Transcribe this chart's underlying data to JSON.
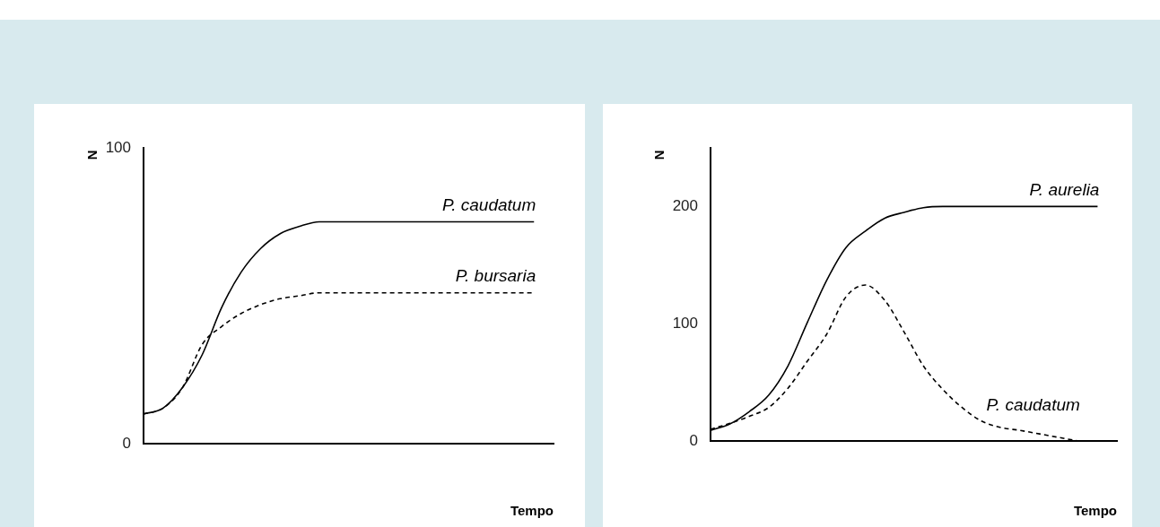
{
  "chart_data": [
    {
      "type": "line",
      "ylabel": "N",
      "xlabel": "Tempo",
      "categories": [
        null,
        null,
        null,
        null,
        null,
        null,
        null,
        null,
        null,
        null,
        null,
        null,
        null,
        null,
        null,
        null,
        null,
        null,
        null,
        null,
        null,
        null
      ],
      "series": [
        {
          "name": "P. caudatum",
          "color": "#000000",
          "line_style": "solid",
          "values": [
            10,
            12,
            19,
            30,
            46,
            58,
            66,
            71,
            73.5,
            75,
            75,
            75,
            75,
            75,
            75,
            75,
            75,
            75,
            75,
            75,
            75,
            null
          ]
        },
        {
          "name": "P. bursaria",
          "color": "#000000",
          "line_style": "dashed",
          "values": [
            10,
            12,
            19,
            33.5,
            39.6,
            44,
            47,
            49,
            50,
            51,
            51,
            51,
            51,
            51,
            51,
            51,
            51,
            51,
            51,
            51,
            51,
            null
          ]
        }
      ],
      "ylim": [
        0,
        100
      ],
      "yticks": [
        0,
        100
      ],
      "tick_labels": "y",
      "grid": false,
      "legend": false
    },
    {
      "type": "line",
      "ylabel": "N",
      "xlabel": "Tempo",
      "categories": [
        null,
        null,
        null,
        null,
        null,
        null,
        null,
        null,
        null,
        null,
        null,
        null,
        null,
        null,
        null,
        null,
        null,
        null,
        null,
        null,
        null,
        null
      ],
      "series": [
        {
          "name": "P. aurelia",
          "color": "#000000",
          "line_style": "solid",
          "values": [
            9,
            14.5,
            25,
            39,
            64,
            101,
            137,
            165,
            179,
            190,
            195,
            199,
            200,
            200,
            200,
            200,
            200,
            200,
            200,
            200,
            200,
            null
          ]
        },
        {
          "name": "P. caudatum",
          "color": "#000000",
          "line_style": "dashed",
          "values": [
            10,
            15,
            21,
            28.5,
            45,
            68,
            91,
            123,
            133,
            120,
            93,
            64,
            44,
            28.5,
            17,
            11.5,
            9,
            6,
            3,
            0,
            null,
            null
          ]
        }
      ],
      "ylim": [
        0,
        250
      ],
      "yticks": [
        0,
        100,
        200
      ],
      "tick_labels": "y",
      "grid": false,
      "legend": false
    }
  ]
}
